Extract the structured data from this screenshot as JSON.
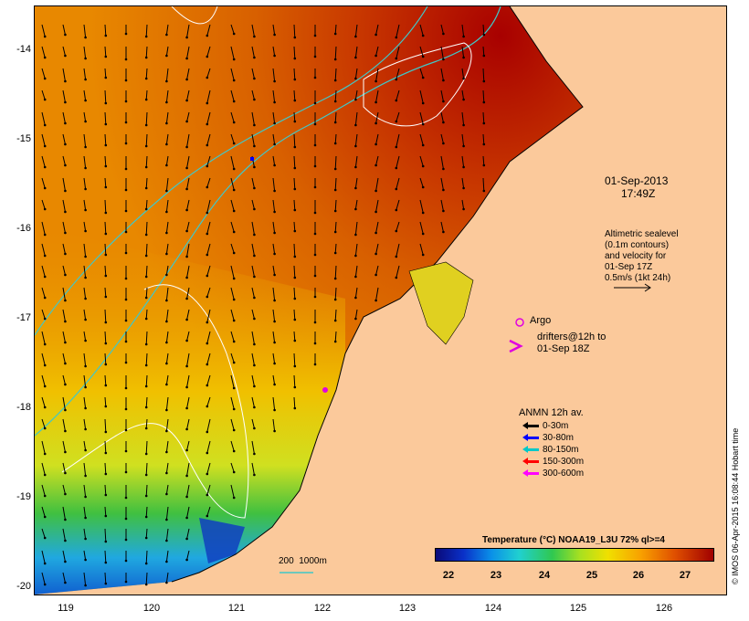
{
  "y_axis_labels": [
    "-14",
    "-15",
    "-16",
    "-17",
    "-18",
    "-19",
    "-20"
  ],
  "x_axis_labels": [
    "119",
    "120",
    "121",
    "122",
    "123",
    "124",
    "125",
    "126"
  ],
  "timestamp": {
    "line1": "01-Sep-2013",
    "line2": "17:49Z"
  },
  "altimetry_note": {
    "line1": "Altimetric sealevel",
    "line2": "(0.1m contours)",
    "line3": "and velocity for",
    "line4": "01-Sep 17Z",
    "line5": "0.5m/s (1kt 24h)"
  },
  "argo_label": "Argo",
  "drifters_note": {
    "line1": "drifters@12h to",
    "line2": "01-Sep 18Z"
  },
  "anmn_legend": {
    "title": "ANMN 12h av.",
    "items": [
      {
        "label": "0-30m",
        "color": "#000000"
      },
      {
        "label": "30-80m",
        "color": "#0000ff"
      },
      {
        "label": "80-150m",
        "color": "#00c8c8"
      },
      {
        "label": "150-300m",
        "color": "#ff0000"
      },
      {
        "label": "300-600m",
        "color": "#ff00ff"
      }
    ]
  },
  "depth_scale_label": "200  1000m",
  "colorbar": {
    "title": "Temperature (°C) NOAA19_L3U 72% ql>=4",
    "ticks": [
      "22",
      "23",
      "24",
      "25",
      "26",
      "27"
    ]
  },
  "credit": "© IMOS 06-Apr-2015 16:08:44 Hobart time",
  "colors": {
    "land": "#fbc99b",
    "contour_200m": "#40c8c8",
    "contour_1000m": "#ffffff"
  }
}
